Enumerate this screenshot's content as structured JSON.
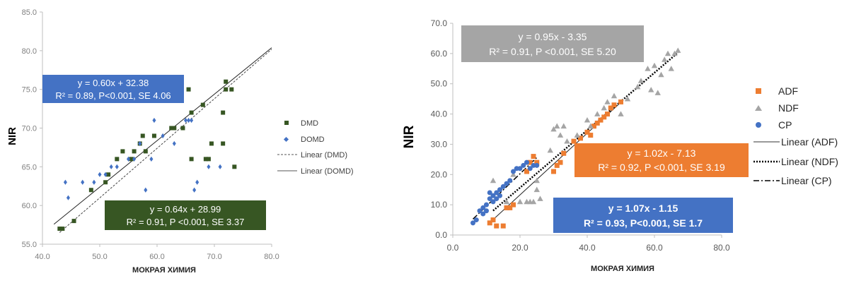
{
  "chart_data": [
    {
      "type": "scatter",
      "title": "",
      "xlabel": "МОКРАЯ ХИМИЯ",
      "ylabel": "NIR",
      "xlim": [
        40,
        80
      ],
      "ylim": [
        55,
        85
      ],
      "x_ticks": [
        "40.0",
        "50.0",
        "60.0",
        "70.0",
        "80.0"
      ],
      "y_ticks": [
        "55.0",
        "60.0",
        "65.0",
        "70.0",
        "75.0",
        "80.0",
        "85.0"
      ],
      "grid": false,
      "legend_position": "right",
      "legend": [
        "DMD",
        "DOMD",
        "Linear (DMD)",
        "Linear (DOMD)"
      ],
      "series": [
        {
          "name": "DMD",
          "marker": "square",
          "color": "#375623",
          "points": [
            [
              43,
              57
            ],
            [
              43.5,
              57
            ],
            [
              45.5,
              58
            ],
            [
              48.5,
              62
            ],
            [
              51,
              63
            ],
            [
              51.5,
              64
            ],
            [
              53,
              66
            ],
            [
              54,
              67
            ],
            [
              55.5,
              66
            ],
            [
              56,
              67
            ],
            [
              57,
              68
            ],
            [
              57.5,
              69
            ],
            [
              58,
              67
            ],
            [
              59.5,
              69
            ],
            [
              62.5,
              70
            ],
            [
              63,
              70
            ],
            [
              64.5,
              70
            ],
            [
              65.5,
              75
            ],
            [
              66,
              72
            ],
            [
              66,
              66
            ],
            [
              68,
              73
            ],
            [
              68.5,
              66
            ],
            [
              69,
              66
            ],
            [
              69.5,
              68
            ],
            [
              71.5,
              68
            ],
            [
              71.5,
              72
            ],
            [
              72,
              76
            ],
            [
              72,
              75
            ],
            [
              73,
              75
            ],
            [
              73.5,
              65
            ]
          ]
        },
        {
          "name": "DOMD",
          "marker": "diamond",
          "color": "#4472c4",
          "points": [
            [
              44,
              63
            ],
            [
              44.5,
              61
            ],
            [
              47,
              63
            ],
            [
              49,
              63
            ],
            [
              50,
              64
            ],
            [
              51,
              64
            ],
            [
              52,
              65
            ],
            [
              53,
              65
            ],
            [
              55,
              66
            ],
            [
              56,
              66
            ],
            [
              57,
              68
            ],
            [
              58,
              62
            ],
            [
              59,
              66
            ],
            [
              59.5,
              71
            ],
            [
              61,
              69
            ],
            [
              63,
              68
            ],
            [
              65,
              71
            ],
            [
              65.5,
              71
            ],
            [
              66,
              71
            ],
            [
              66.5,
              62
            ],
            [
              67,
              63
            ],
            [
              69,
              65
            ],
            [
              71,
              65
            ]
          ]
        }
      ],
      "trendlines": [
        {
          "name": "Linear (DMD)",
          "style": "dashed",
          "slope": 0.64,
          "intercept": 28.99,
          "x_range": [
            43,
            80
          ]
        },
        {
          "name": "Linear (DOMD)",
          "style": "solid",
          "slope": 0.6,
          "intercept": 32.38,
          "x_range": [
            42,
            80
          ]
        }
      ],
      "annotations": [
        {
          "color": "#4472c4",
          "line1": "y = 0.60x + 32.38",
          "line2": "R² = 0.89, P<0.001, SE 4.06"
        },
        {
          "color": "#375623",
          "line1": "y = 0.64x + 28.99",
          "line2": "R² = 0.91, P <0.001, SE 3.37"
        }
      ]
    },
    {
      "type": "scatter",
      "title": "",
      "xlabel": "МОКРАЯ ХИМИЯ",
      "ylabel": "NIR",
      "xlim": [
        0,
        80
      ],
      "ylim": [
        0,
        70
      ],
      "x_ticks": [
        "0.0",
        "20.0",
        "40.0",
        "60.0",
        "80.0"
      ],
      "y_ticks": [
        "0.0",
        "10.0",
        "20.0",
        "30.0",
        "40.0",
        "50.0",
        "60.0",
        "70.0"
      ],
      "grid": false,
      "legend_position": "right",
      "legend": [
        "ADF",
        "NDF",
        "CP",
        "Linear (ADF)",
        "Linear (NDF)",
        "Linear (CP)"
      ],
      "series": [
        {
          "name": "ADF",
          "marker": "square",
          "color": "#ed7d31",
          "points": [
            [
              11,
              4
            ],
            [
              12,
              5
            ],
            [
              13,
              3
            ],
            [
              15,
              3
            ],
            [
              16,
              9
            ],
            [
              17,
              9
            ],
            [
              18,
              10
            ],
            [
              22,
              21
            ],
            [
              23,
              24
            ],
            [
              24,
              26
            ],
            [
              25,
              24
            ],
            [
              30,
              21
            ],
            [
              31,
              23
            ],
            [
              32,
              24
            ],
            [
              33,
              27
            ],
            [
              36,
              31
            ],
            [
              38,
              32
            ],
            [
              40,
              34
            ],
            [
              41,
              33
            ],
            [
              42,
              36
            ],
            [
              43,
              37
            ],
            [
              44,
              38
            ],
            [
              45,
              39
            ],
            [
              46,
              40
            ],
            [
              47,
              42
            ],
            [
              48,
              43
            ],
            [
              50,
              44
            ]
          ]
        },
        {
          "name": "NDF",
          "marker": "triangle",
          "color": "#a5a5a5",
          "points": [
            [
              12,
              18
            ],
            [
              16,
              11
            ],
            [
              18,
              20
            ],
            [
              20,
              11
            ],
            [
              22,
              11
            ],
            [
              23,
              11
            ],
            [
              24,
              11
            ],
            [
              25,
              15
            ],
            [
              25,
              18
            ],
            [
              26,
              12
            ],
            [
              29,
              28
            ],
            [
              30,
              35
            ],
            [
              31,
              36
            ],
            [
              32,
              33
            ],
            [
              33,
              36
            ],
            [
              34,
              31
            ],
            [
              37,
              33
            ],
            [
              40,
              38
            ],
            [
              41,
              36
            ],
            [
              43,
              40
            ],
            [
              45,
              42
            ],
            [
              46,
              44
            ],
            [
              48,
              46
            ],
            [
              50,
              40
            ],
            [
              52,
              45
            ],
            [
              55,
              49
            ],
            [
              56,
              51
            ],
            [
              58,
              55
            ],
            [
              59,
              48
            ],
            [
              60,
              56
            ],
            [
              61,
              47
            ],
            [
              62,
              53
            ],
            [
              63,
              58
            ],
            [
              64,
              60
            ],
            [
              65,
              55
            ],
            [
              66,
              60
            ],
            [
              67,
              61
            ]
          ]
        },
        {
          "name": "CP",
          "marker": "circle",
          "color": "#4472c4",
          "points": [
            [
              6,
              4
            ],
            [
              7,
              5
            ],
            [
              8,
              8
            ],
            [
              9,
              9
            ],
            [
              10,
              10
            ],
            [
              11,
              12
            ],
            [
              12,
              13
            ],
            [
              13,
              14
            ],
            [
              14,
              15
            ],
            [
              15,
              16
            ],
            [
              11,
              14
            ],
            [
              13,
              12
            ],
            [
              12,
              11
            ],
            [
              14,
              13
            ],
            [
              16,
              17
            ],
            [
              17,
              18
            ],
            [
              18,
              21
            ],
            [
              19,
              22
            ],
            [
              20,
              22
            ],
            [
              21,
              23
            ],
            [
              22,
              24
            ],
            [
              23,
              22
            ],
            [
              24,
              23
            ],
            [
              25,
              23
            ],
            [
              10,
              8
            ],
            [
              9,
              7
            ]
          ]
        }
      ],
      "trendlines": [
        {
          "name": "Linear (ADF)",
          "style": "solid",
          "slope": 1.02,
          "intercept": -7.13,
          "x_range": [
            11,
            50
          ]
        },
        {
          "name": "Linear (NDF)",
          "style": "dotted",
          "slope": 0.95,
          "intercept": -3.35,
          "x_range": [
            12,
            67
          ]
        },
        {
          "name": "Linear (CP)",
          "style": "dashdot",
          "slope": 1.07,
          "intercept": -1.15,
          "x_range": [
            6,
            25
          ]
        }
      ],
      "annotations": [
        {
          "color": "#a5a5a5",
          "line1": "y = 0.95x - 3.35",
          "line2": "R² = 0.91, P <0.001, SE 5.20"
        },
        {
          "color": "#ed7d31",
          "line1": "y = 1.02x - 7.13",
          "line2": "R² = 0.92, P <0.001, SE 3.19"
        },
        {
          "color": "#4472c4",
          "line1": "y = 1.07x - 1.15",
          "line2": "R² = 0.93, P<0.001, SE 1.7"
        }
      ]
    }
  ]
}
